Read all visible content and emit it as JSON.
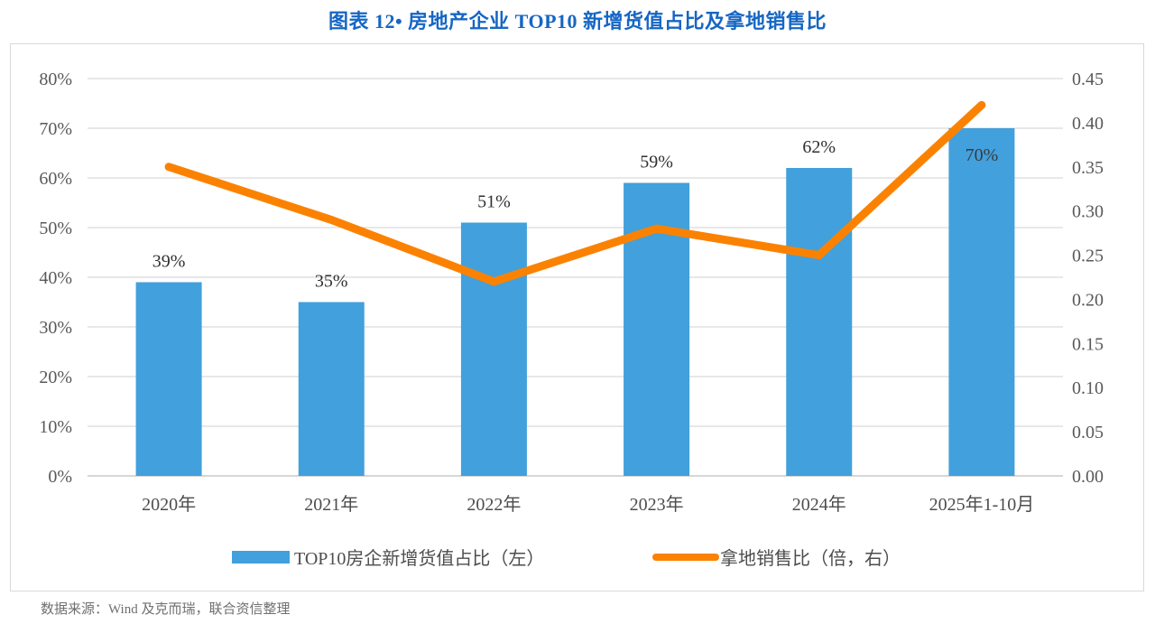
{
  "title": "图表 12• 房地产企业 TOP10 新增货值占比及拿地销售比",
  "source": "数据来源：Wind 及克而瑞，联合资信整理",
  "colors": {
    "title": "#1666C4",
    "bar": "#42A0DC",
    "line": "#FB8200",
    "grid": "#D9D9D9",
    "axis_line": "#BFBFBF",
    "tick_label": "#595959",
    "x_label": "#4D4D4D",
    "data_label": "#303030",
    "data_label_inside": "#3A3A3A",
    "source_text": "#6F6F6F",
    "figure_border": "#D9D9D9"
  },
  "chart_data": {
    "type": "bar",
    "subtype": "combo bar+line, dual axis",
    "title": "图表 12• 房地产企业 TOP10 新增货值占比及拿地销售比",
    "categories": [
      "2020年",
      "2021年",
      "2022年",
      "2023年",
      "2024年",
      "2025年1-10月"
    ],
    "series": [
      {
        "name": "TOP10房企新增货值占比（左）",
        "type": "bar",
        "axis": "left",
        "values": [
          0.39,
          0.35,
          0.51,
          0.59,
          0.62,
          0.7
        ],
        "data_labels": [
          "39%",
          "35%",
          "51%",
          "59%",
          "62%",
          "70%"
        ]
      },
      {
        "name": "拿地销售比（倍，右）",
        "type": "line",
        "axis": "right",
        "values": [
          0.35,
          0.29,
          0.22,
          0.28,
          0.25,
          0.42
        ]
      }
    ],
    "left_axis": {
      "min": 0,
      "max": 0.8,
      "tick_labels": [
        "80%",
        "70%",
        "60%",
        "50%",
        "40%",
        "30%",
        "20%",
        "10%",
        "0%"
      ]
    },
    "right_axis": {
      "min": 0,
      "max": 0.45,
      "tick_labels": [
        "0.45",
        "0.40",
        "0.35",
        "0.30",
        "0.25",
        "0.20",
        "0.15",
        "0.10",
        "0.05",
        "0.00"
      ]
    },
    "grid": true,
    "legend_position": "bottom"
  }
}
